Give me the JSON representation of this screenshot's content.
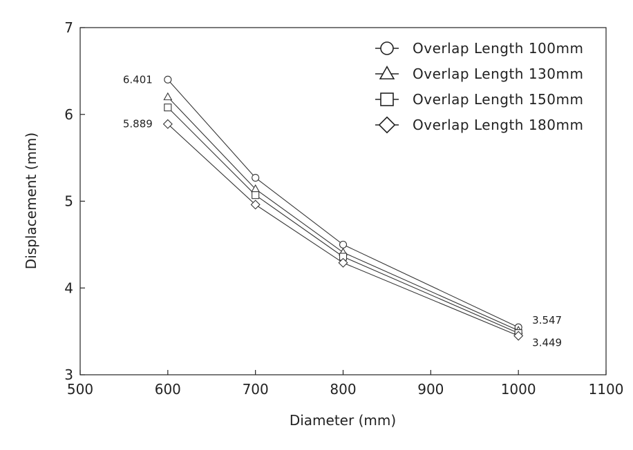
{
  "chart_data": {
    "type": "line",
    "title": "",
    "xlabel": "Diameter (mm)",
    "ylabel": "Displacement (mm)",
    "xlim": [
      500,
      1100
    ],
    "ylim": [
      3,
      7
    ],
    "x_ticks": [
      500,
      600,
      700,
      800,
      900,
      1000,
      1100
    ],
    "y_ticks": [
      3,
      4,
      5,
      6,
      7
    ],
    "x": [
      600,
      700,
      800,
      1000
    ],
    "grid": false,
    "legend_position": "top-right",
    "series": [
      {
        "name": "Overlap Length 100mm",
        "marker": "circle",
        "values": [
          6.401,
          5.27,
          4.5,
          3.547
        ]
      },
      {
        "name": "Overlap Length 130mm",
        "marker": "triangle",
        "values": [
          6.2,
          5.14,
          4.41,
          3.51
        ]
      },
      {
        "name": "Overlap Length 150mm",
        "marker": "square",
        "values": [
          6.08,
          5.07,
          4.36,
          3.48
        ]
      },
      {
        "name": "Overlap Length 180mm",
        "marker": "diamond",
        "values": [
          5.889,
          4.96,
          4.29,
          3.449
        ]
      }
    ],
    "annotations": [
      {
        "text": "6.401",
        "x": 600,
        "y": 6.401,
        "anchor": "left"
      },
      {
        "text": "5.889",
        "x": 600,
        "y": 5.889,
        "anchor": "left"
      },
      {
        "text": "3.547",
        "x": 1000,
        "y": 3.547,
        "anchor": "right-above"
      },
      {
        "text": "3.449",
        "x": 1000,
        "y": 3.449,
        "anchor": "right-below"
      }
    ]
  }
}
